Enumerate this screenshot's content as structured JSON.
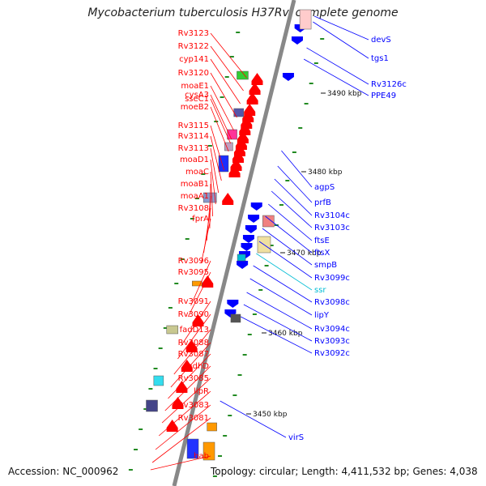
{
  "title": "Mycobacterium tuberculosis H37Rv, complete genome",
  "footer": {
    "accession": "Accession: NC_000962",
    "summary": "Topology: circular; Length: 4,411,532 bp; Genes: 4,038"
  },
  "colors": {
    "forward": "#ff0000",
    "reverse": "#0000ff",
    "rna": "#00bcd4",
    "ruler": "#228b22",
    "axis": "#888888"
  },
  "scale_marks": [
    "3490 kbp",
    "3480 kbp",
    "3470 kbp",
    "3460 kbp",
    "3450 kbp"
  ],
  "left_labels": [
    "Rv3123",
    "Rv3122",
    "cyp141",
    "Rv3120",
    "moaE1",
    "cysA3",
    "sseC1",
    "moeB2",
    "Rv3115",
    "Rv3114",
    "Rv3113",
    "moaD1",
    "moaC",
    "moaB1",
    "moaA1",
    "Rv3108",
    "fprA",
    "Rv3096",
    "Rv3095",
    "Rv3091",
    "Rv3090",
    "fadD13",
    "Rv3088",
    "Rv3087",
    "adhD",
    "Rv3085",
    "lipR",
    "Rv3083",
    "Rv3081",
    "hab"
  ],
  "right_labels": [
    "devS",
    "tgs1",
    "Rv3126c",
    "PPE49",
    "agpS",
    "prfB",
    "Rv3104c",
    "Rv3103c",
    "ftsE",
    "ftsX",
    "smpB",
    "Rv3099c",
    "ssr",
    "Rv3098c",
    "lipY",
    "Rv3094c",
    "Rv3093c",
    "Rv3092c",
    "virS"
  ]
}
